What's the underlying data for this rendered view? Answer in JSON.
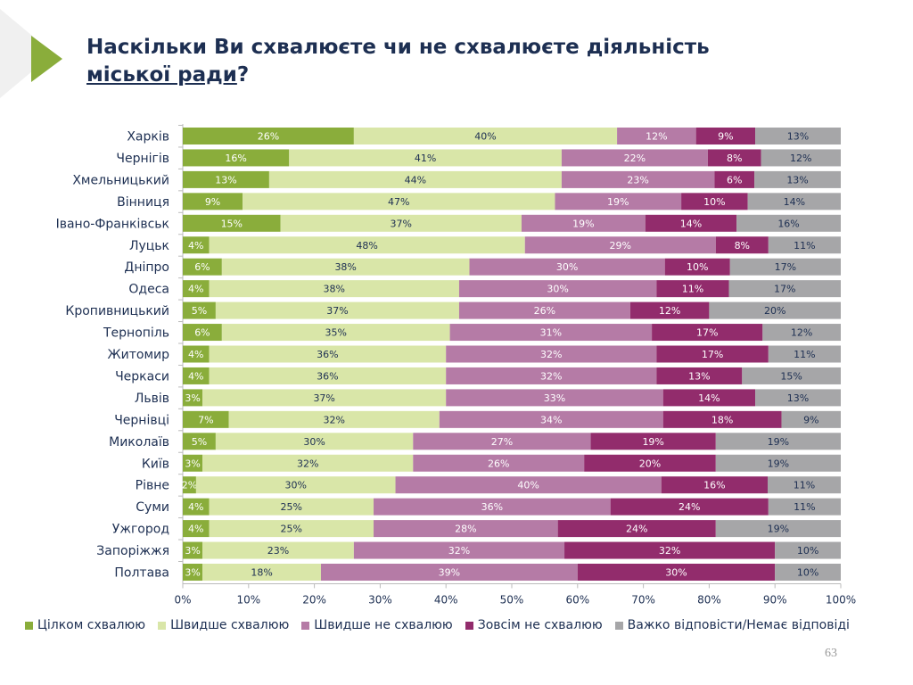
{
  "title": {
    "part1": "Наскільки Ви схвалюєте чи не схвалюєте діяльність",
    "part2_underlined": "міської ради",
    "part3": "?"
  },
  "page_number": "63",
  "colors": {
    "accent": "#8aad3b",
    "title": "#1d2f52"
  },
  "chart_data": {
    "type": "bar",
    "orientation": "horizontal",
    "stacked": "100%",
    "categories": [
      "Харків",
      "Чернігів",
      "Хмельницький",
      "Вінниця",
      "Івано-Франківськ",
      "Луцьк",
      "Дніпро",
      "Одеса",
      "Кропивницький",
      "Тернопіль",
      "Житомир",
      "Черкаси",
      "Львів",
      "Чернівці",
      "Миколаїв",
      "Київ",
      "Рівне",
      "Суми",
      "Ужгород",
      "Запоріжжя",
      "Полтава"
    ],
    "series": [
      {
        "name": "Цілком схвалюю",
        "color": "#8aad3b",
        "label_color": "#ffffff",
        "values": [
          26,
          16,
          13,
          9,
          15,
          4,
          6,
          4,
          5,
          6,
          4,
          4,
          3,
          7,
          5,
          3,
          2,
          4,
          4,
          3,
          3
        ]
      },
      {
        "name": "Швидше схвалюю",
        "color": "#d9e6a8",
        "label_color": "#1d2f52",
        "values": [
          40,
          41,
          44,
          47,
          37,
          48,
          38,
          38,
          37,
          35,
          36,
          36,
          37,
          32,
          30,
          32,
          30,
          25,
          25,
          23,
          18
        ]
      },
      {
        "name": "Швидше не схвалюю",
        "color": "#b57ba6",
        "label_color": "#ffffff",
        "values": [
          12,
          22,
          23,
          19,
          19,
          29,
          30,
          30,
          26,
          31,
          32,
          32,
          33,
          34,
          27,
          26,
          40,
          36,
          28,
          32,
          39
        ]
      },
      {
        "name": "Зовсім не схвалюю",
        "color": "#922c6c",
        "label_color": "#ffffff",
        "values": [
          9,
          8,
          6,
          10,
          14,
          8,
          10,
          11,
          12,
          17,
          17,
          13,
          14,
          18,
          19,
          20,
          16,
          24,
          24,
          32,
          30
        ]
      },
      {
        "name": "Важко відповісти/Немає відповіді",
        "color": "#a6a6a8",
        "label_color": "#1d2f52",
        "values": [
          13,
          12,
          13,
          14,
          16,
          11,
          17,
          17,
          20,
          12,
          11,
          15,
          13,
          9,
          19,
          19,
          11,
          11,
          19,
          10,
          10
        ]
      }
    ],
    "x_ticks": [
      "0%",
      "10%",
      "20%",
      "30%",
      "40%",
      "50%",
      "60%",
      "70%",
      "80%",
      "90%",
      "100%"
    ],
    "xlim": [
      0,
      100
    ],
    "grid": false,
    "legend": "bottom"
  }
}
